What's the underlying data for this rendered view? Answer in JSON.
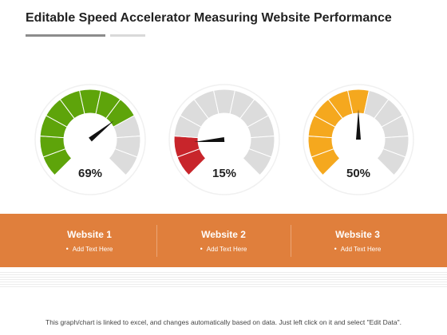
{
  "title": "Editable Speed Accelerator Measuring Website Performance",
  "chart_data": {
    "type": "gauge",
    "segments": 11,
    "gauges": [
      {
        "value": 69,
        "label": "69%",
        "color": "#5ea40a"
      },
      {
        "value": 15,
        "label": "15%",
        "color": "#c8252b"
      },
      {
        "value": 50,
        "label": "50%",
        "color": "#f5a81e"
      }
    ],
    "inactive_color": "#dcdcdc",
    "needle_color": "#111111"
  },
  "websites": [
    {
      "name": "Website 1",
      "text": "Add Text Here"
    },
    {
      "name": "Website 2",
      "text": "Add Text Here"
    },
    {
      "name": "Website 3",
      "text": "Add Text Here"
    }
  ],
  "band_color": "#e07f3c",
  "footnote": "This graph/chart is linked to excel, and changes automatically based on data. Just left click on it and select \"Edit Data\"."
}
